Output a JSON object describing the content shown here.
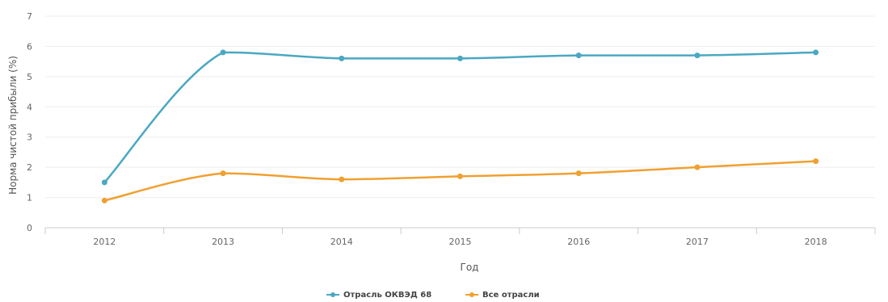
{
  "chart_data": {
    "type": "line",
    "title": "",
    "xlabel": "Год",
    "ylabel": "Норма чистой прибыли (%)",
    "categories": [
      "2012",
      "2013",
      "2014",
      "2015",
      "2016",
      "2017",
      "2018"
    ],
    "ylim": [
      0,
      7
    ],
    "yticks": [
      0,
      1,
      2,
      3,
      4,
      5,
      6,
      7
    ],
    "grid": "horizontal",
    "legend_position": "bottom",
    "series": [
      {
        "name": "Отрасль ОКВЭД 68",
        "color": "#4aa8c2",
        "values": [
          1.5,
          5.8,
          5.6,
          5.6,
          5.7,
          5.7,
          5.8
        ]
      },
      {
        "name": "Все отрасли",
        "color": "#f0a030",
        "values": [
          0.9,
          1.8,
          1.6,
          1.7,
          1.8,
          2.0,
          2.2
        ]
      }
    ]
  }
}
